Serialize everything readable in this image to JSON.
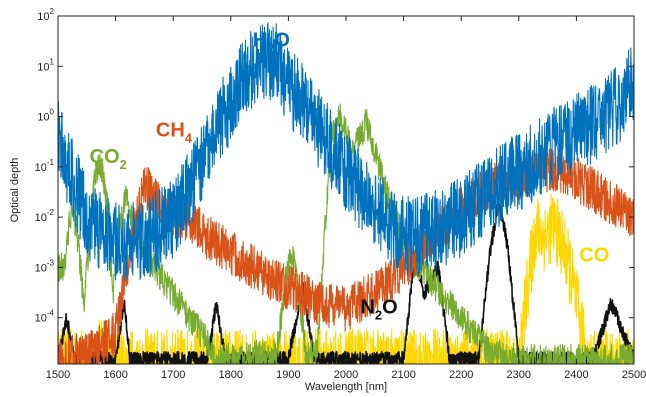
{
  "chart_data": {
    "type": "line",
    "title": "",
    "xlabel": "Wavelength [nm]",
    "ylabel": "Optical depth",
    "xlim": [
      1500,
      2500
    ],
    "ylim": [
      1.2e-05,
      100
    ],
    "yscale": "log",
    "grid": false,
    "x_ticks": [
      {
        "value": 1500,
        "label": "1500"
      },
      {
        "value": 1600,
        "label": "1600"
      },
      {
        "value": 1700,
        "label": "1700"
      },
      {
        "value": 1800,
        "label": "1800"
      },
      {
        "value": 1900,
        "label": "1900"
      },
      {
        "value": 2000,
        "label": "2000"
      },
      {
        "value": 2100,
        "label": "2100"
      },
      {
        "value": 2200,
        "label": "2200"
      },
      {
        "value": 2300,
        "label": "2300"
      },
      {
        "value": 2400,
        "label": "2400"
      },
      {
        "value": 2500,
        "label": "2500"
      }
    ],
    "y_ticks": [
      {
        "value": 0.0001,
        "base": "10",
        "exp": "-4"
      },
      {
        "value": 0.001,
        "base": "10",
        "exp": "-3"
      },
      {
        "value": 0.01,
        "base": "10",
        "exp": "-2"
      },
      {
        "value": 0.1,
        "base": "10",
        "exp": "-1"
      },
      {
        "value": 1,
        "base": "10",
        "exp": "0"
      },
      {
        "value": 10,
        "base": "10",
        "exp": "1"
      },
      {
        "value": 100,
        "base": "10",
        "exp": "2"
      }
    ],
    "series": [
      {
        "name": "H2O",
        "color": "#0072BD",
        "noise": 1.6,
        "points": [
          [
            1500,
            0.5
          ],
          [
            1520,
            0.08
          ],
          [
            1550,
            0.01
          ],
          [
            1580,
            0.004
          ],
          [
            1620,
            0.003
          ],
          [
            1660,
            0.004
          ],
          [
            1700,
            0.01
          ],
          [
            1740,
            0.06
          ],
          [
            1770,
            0.4
          ],
          [
            1800,
            2
          ],
          [
            1830,
            8
          ],
          [
            1860,
            15
          ],
          [
            1880,
            12
          ],
          [
            1900,
            4
          ],
          [
            1930,
            1.5
          ],
          [
            1960,
            0.4
          ],
          [
            1990,
            0.12
          ],
          [
            2020,
            0.04
          ],
          [
            2050,
            0.015
          ],
          [
            2080,
            0.006
          ],
          [
            2110,
            0.004
          ],
          [
            2150,
            0.005
          ],
          [
            2200,
            0.01
          ],
          [
            2250,
            0.03
          ],
          [
            2300,
            0.08
          ],
          [
            2350,
            0.2
          ],
          [
            2400,
            0.5
          ],
          [
            2450,
            1
          ],
          [
            2480,
            2
          ],
          [
            2500,
            6
          ]
        ]
      },
      {
        "name": "CH4",
        "color": "#D95319",
        "noise": 0.9,
        "points": [
          [
            1500,
            1.5e-05
          ],
          [
            1560,
            2e-05
          ],
          [
            1600,
            5e-05
          ],
          [
            1630,
            0.005
          ],
          [
            1650,
            0.04
          ],
          [
            1665,
            0.03
          ],
          [
            1680,
            0.015
          ],
          [
            1720,
            0.01
          ],
          [
            1760,
            0.004
          ],
          [
            1800,
            0.002
          ],
          [
            1850,
            0.0008
          ],
          [
            1900,
            0.0004
          ],
          [
            1950,
            0.0002
          ],
          [
            2000,
            0.00015
          ],
          [
            2050,
            0.0003
          ],
          [
            2100,
            0.001
          ],
          [
            2150,
            0.004
          ],
          [
            2200,
            0.015
          ],
          [
            2250,
            0.04
          ],
          [
            2300,
            0.06
          ],
          [
            2350,
            0.09
          ],
          [
            2380,
            0.08
          ],
          [
            2420,
            0.04
          ],
          [
            2460,
            0.02
          ],
          [
            2500,
            0.01
          ]
        ]
      },
      {
        "name": "CO2",
        "color": "#77AC30",
        "noise": 0.6,
        "points": [
          [
            1510,
            0.001
          ],
          [
            1525,
            0.02
          ],
          [
            1535,
            0.003
          ],
          [
            1545,
            0.0002
          ],
          [
            1565,
            0.08
          ],
          [
            1575,
            0.1
          ],
          [
            1585,
            0.02
          ],
          [
            1595,
            0.0003
          ],
          [
            1610,
            0.01
          ],
          [
            1620,
            0.03
          ],
          [
            1630,
            0.006
          ],
          [
            1650,
            0.002
          ],
          [
            1700,
            0.0003
          ],
          [
            1780,
            1.5e-05
          ],
          [
            1880,
            2e-05
          ],
          [
            1895,
            0.0005
          ],
          [
            1905,
            0.002
          ],
          [
            1915,
            0.0006
          ],
          [
            1930,
            2e-05
          ],
          [
            1950,
            2e-05
          ],
          [
            1965,
            0.01
          ],
          [
            1975,
            0.4
          ],
          [
            1990,
            1
          ],
          [
            2000,
            0.5
          ],
          [
            2010,
            0.2
          ],
          [
            2020,
            0.3
          ],
          [
            2035,
            0.8
          ],
          [
            2050,
            0.2
          ],
          [
            2070,
            0.03
          ],
          [
            2100,
            0.003
          ],
          [
            2150,
            0.0005
          ],
          [
            2200,
            0.0001
          ],
          [
            2250,
            2e-05
          ],
          [
            2300,
            1.5e-05
          ],
          [
            2500,
            1.5e-05
          ]
        ]
      },
      {
        "name": "N2O",
        "color": "#111111",
        "noise": 0.3,
        "points": [
          [
            1500,
            1.5e-05
          ],
          [
            1515,
            0.0001
          ],
          [
            1530,
            1.5e-05
          ],
          [
            1600,
            1.5e-05
          ],
          [
            1615,
            0.0002
          ],
          [
            1625,
            1.5e-05
          ],
          [
            1760,
            1.5e-05
          ],
          [
            1775,
            0.0002
          ],
          [
            1790,
            1.5e-05
          ],
          [
            1900,
            1.5e-05
          ],
          [
            1925,
            0.0004
          ],
          [
            1945,
            1.5e-05
          ],
          [
            2100,
            1.5e-05
          ],
          [
            2120,
            0.002
          ],
          [
            2135,
            0.0003
          ],
          [
            2160,
            0.001
          ],
          [
            2180,
            1.5e-05
          ],
          [
            2230,
            1.5e-05
          ],
          [
            2250,
            0.002
          ],
          [
            2265,
            0.02
          ],
          [
            2280,
            0.003
          ],
          [
            2300,
            1.5e-05
          ],
          [
            2430,
            1.5e-05
          ],
          [
            2460,
            0.0002
          ],
          [
            2500,
            1.5e-05
          ]
        ]
      },
      {
        "name": "CO",
        "color": "#FFD700",
        "noise": 1.4,
        "points": [
          [
            1500,
            1.2e-05
          ],
          [
            1565,
            1.2e-05
          ],
          [
            1575,
            3e-05
          ],
          [
            1585,
            1.2e-05
          ],
          [
            2300,
            1.2e-05
          ],
          [
            2315,
            0.0004
          ],
          [
            2330,
            0.006
          ],
          [
            2345,
            0.004
          ],
          [
            2360,
            0.007
          ],
          [
            2375,
            0.003
          ],
          [
            2390,
            0.0008
          ],
          [
            2405,
            0.0001
          ],
          [
            2420,
            1.2e-05
          ],
          [
            2500,
            1.2e-05
          ]
        ]
      }
    ],
    "annotations": [
      {
        "base": "H",
        "sub": "2",
        "tail": "O",
        "color": "#0072BD",
        "x": 1838,
        "y": 25
      },
      {
        "base": "CH",
        "sub": "4",
        "tail": "",
        "color": "#D95319",
        "x": 1670,
        "y": 0.4
      },
      {
        "base": "CO",
        "sub": "2",
        "tail": "",
        "color": "#77AC30",
        "x": 1555,
        "y": 0.12
      },
      {
        "base": "N",
        "sub": "2",
        "tail": "O",
        "color": "#111111",
        "x": 2025,
        "y": 0.00012
      },
      {
        "base": "CO",
        "sub": "",
        "tail": "",
        "color": "#FFD700",
        "x": 2405,
        "y": 0.0013
      }
    ]
  }
}
